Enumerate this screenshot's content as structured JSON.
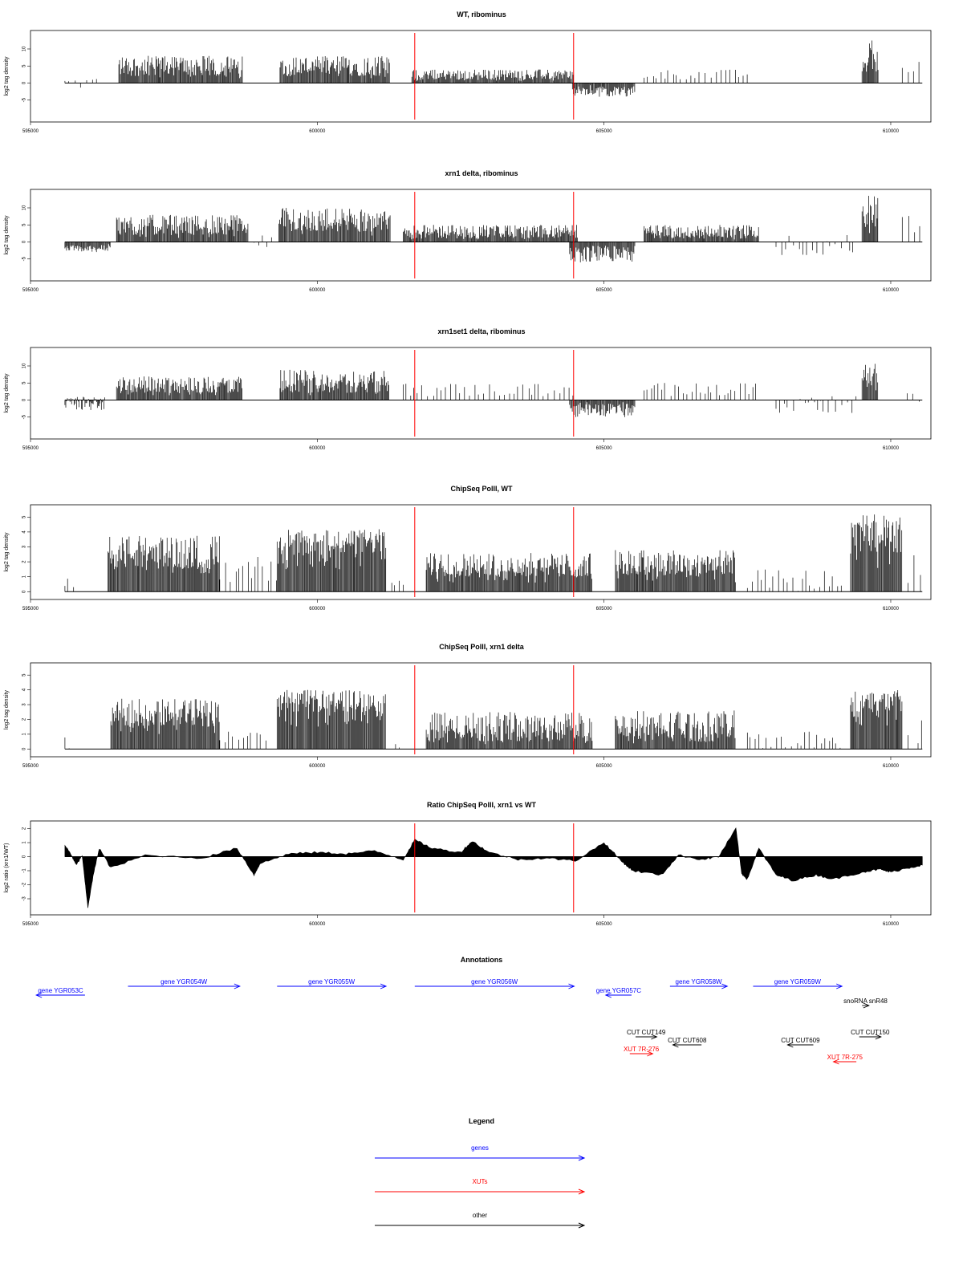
{
  "colors": {
    "marker": "#ff0000",
    "genes": "#0000ff",
    "xuts": "#ff0000",
    "other": "#000000"
  },
  "chart_data": [
    {
      "type": "bar",
      "title": "WT, ribominus",
      "ylabel": "log2 tag density",
      "xlim": [
        595000,
        610700
      ],
      "ylim": [
        -10,
        14
      ],
      "xticks": [
        595000,
        600000,
        605000,
        610000
      ],
      "yticks": [
        -5,
        0,
        5,
        10
      ],
      "markers": [
        601700,
        604470
      ],
      "segments": [
        {
          "x": [
            595600,
            596200
          ],
          "y": [
            -2,
            2
          ],
          "mode": "sparse"
        },
        {
          "x": [
            596540,
            597700
          ],
          "y": [
            2,
            8
          ],
          "mode": "dense"
        },
        {
          "x": [
            597700,
            598700
          ],
          "y": [
            2,
            8
          ],
          "mode": "dense"
        },
        {
          "x": [
            599350,
            601260
          ],
          "y": [
            2,
            8
          ],
          "mode": "dense"
        },
        {
          "x": [
            601650,
            604470
          ],
          "y": [
            1,
            4
          ],
          "mode": "dense"
        },
        {
          "x": [
            604450,
            605550
          ],
          "y": [
            -4,
            -1
          ],
          "mode": "dense"
        },
        {
          "x": [
            605700,
            607500
          ],
          "y": [
            1,
            4
          ],
          "mode": "sparse"
        },
        {
          "x": [
            609500,
            609780
          ],
          "y": [
            3,
            13
          ],
          "mode": "dense"
        },
        {
          "x": [
            610200,
            610550
          ],
          "y": [
            2,
            7
          ],
          "mode": "sparse"
        }
      ]
    },
    {
      "type": "bar",
      "title": "xrn1 delta, ribominus",
      "ylabel": "log2 tag density",
      "xlim": [
        595000,
        610700
      ],
      "ylim": [
        -10,
        14
      ],
      "xticks": [
        595000,
        600000,
        605000,
        610000
      ],
      "yticks": [
        -5,
        0,
        5,
        10
      ],
      "markers": [
        601700,
        604470
      ],
      "segments": [
        {
          "x": [
            595600,
            596400
          ],
          "y": [
            -3,
            -1
          ],
          "mode": "dense"
        },
        {
          "x": [
            596500,
            598800
          ],
          "y": [
            2,
            8
          ],
          "mode": "dense"
        },
        {
          "x": [
            598900,
            599300
          ],
          "y": [
            -2,
            2
          ],
          "mode": "sparse"
        },
        {
          "x": [
            599330,
            601280
          ],
          "y": [
            3,
            10
          ],
          "mode": "dense"
        },
        {
          "x": [
            601500,
            604550
          ],
          "y": [
            1,
            5
          ],
          "mode": "dense"
        },
        {
          "x": [
            604400,
            605550
          ],
          "y": [
            -6,
            -1
          ],
          "mode": "dense"
        },
        {
          "x": [
            605700,
            607700
          ],
          "y": [
            1,
            5
          ],
          "mode": "dense"
        },
        {
          "x": [
            608000,
            609400
          ],
          "y": [
            -4,
            2
          ],
          "mode": "sparse"
        },
        {
          "x": [
            609500,
            609780
          ],
          "y": [
            3,
            14
          ],
          "mode": "dense"
        },
        {
          "x": [
            610200,
            610550
          ],
          "y": [
            2,
            8
          ],
          "mode": "sparse"
        }
      ]
    },
    {
      "type": "bar",
      "title": "xrn1set1 delta, ribominus",
      "ylabel": "log2 tag density",
      "xlim": [
        595000,
        610700
      ],
      "ylim": [
        -10,
        14
      ],
      "xticks": [
        595000,
        600000,
        605000,
        610000
      ],
      "yticks": [
        -5,
        0,
        5,
        10
      ],
      "markers": [
        601700,
        604470
      ],
      "segments": [
        {
          "x": [
            595600,
            596300
          ],
          "y": [
            -3,
            1
          ],
          "mode": "dense"
        },
        {
          "x": [
            596500,
            598700
          ],
          "y": [
            2,
            7
          ],
          "mode": "dense"
        },
        {
          "x": [
            599350,
            601250
          ],
          "y": [
            2,
            9
          ],
          "mode": "dense"
        },
        {
          "x": [
            601500,
            604500
          ],
          "y": [
            1,
            5
          ],
          "mode": "sparse"
        },
        {
          "x": [
            604400,
            605550
          ],
          "y": [
            -5,
            -1
          ],
          "mode": "dense"
        },
        {
          "x": [
            605700,
            607700
          ],
          "y": [
            1,
            5
          ],
          "mode": "sparse"
        },
        {
          "x": [
            608000,
            609400
          ],
          "y": [
            -4,
            2
          ],
          "mode": "sparse"
        },
        {
          "x": [
            609500,
            609780
          ],
          "y": [
            3,
            11
          ],
          "mode": "dense"
        },
        {
          "x": [
            610200,
            610550
          ],
          "y": [
            -1,
            4
          ],
          "mode": "sparse"
        }
      ]
    },
    {
      "type": "bar",
      "title": "ChipSeq PolII, WT",
      "ylabel": "log2 tag density",
      "xlim": [
        595000,
        610700
      ],
      "ylim": [
        -0.2,
        5.5
      ],
      "xticks": [
        595000,
        600000,
        605000,
        610000
      ],
      "yticks": [
        0,
        1,
        2,
        3,
        4,
        5
      ],
      "markers": [
        601700,
        604470
      ],
      "segments": [
        {
          "x": [
            595600,
            595800
          ],
          "y": [
            0,
            1
          ],
          "mode": "sparse"
        },
        {
          "x": [
            596350,
            598300
          ],
          "y": [
            1.5,
            3.8
          ],
          "mode": "dense"
        },
        {
          "x": [
            598300,
            599300
          ],
          "y": [
            0.5,
            2.5
          ],
          "mode": "sparse"
        },
        {
          "x": [
            599300,
            601200
          ],
          "y": [
            2.5,
            4.2
          ],
          "mode": "dense"
        },
        {
          "x": [
            601300,
            601600
          ],
          "y": [
            0,
            1
          ],
          "mode": "sparse"
        },
        {
          "x": [
            601900,
            604800
          ],
          "y": [
            1,
            2.6
          ],
          "mode": "dense"
        },
        {
          "x": [
            605200,
            607300
          ],
          "y": [
            1,
            2.8
          ],
          "mode": "dense"
        },
        {
          "x": [
            607500,
            609200
          ],
          "y": [
            0,
            1.5
          ],
          "mode": "sparse"
        },
        {
          "x": [
            609300,
            610200
          ],
          "y": [
            2.5,
            5.2
          ],
          "mode": "dense"
        },
        {
          "x": [
            610300,
            610550
          ],
          "y": [
            0,
            3
          ],
          "mode": "sparse"
        }
      ]
    },
    {
      "type": "bar",
      "title": "ChipSeq PolII, xrn1 delta",
      "ylabel": "log2 tag density",
      "xlim": [
        595000,
        610700
      ],
      "ylim": [
        -0.2,
        5.5
      ],
      "xticks": [
        595000,
        600000,
        605000,
        610000
      ],
      "yticks": [
        0,
        1,
        2,
        3,
        4,
        5
      ],
      "markers": [
        601700,
        604470
      ],
      "segments": [
        {
          "x": [
            595600,
            595700
          ],
          "y": [
            0,
            1
          ],
          "mode": "sparse"
        },
        {
          "x": [
            596400,
            598300
          ],
          "y": [
            1.5,
            3.4
          ],
          "mode": "dense"
        },
        {
          "x": [
            598300,
            599200
          ],
          "y": [
            0.3,
            1.5
          ],
          "mode": "sparse"
        },
        {
          "x": [
            599300,
            601200
          ],
          "y": [
            2.5,
            4
          ],
          "mode": "dense"
        },
        {
          "x": [
            601300,
            601600
          ],
          "y": [
            0,
            0.8
          ],
          "mode": "sparse"
        },
        {
          "x": [
            601900,
            604800
          ],
          "y": [
            0.5,
            2.5
          ],
          "mode": "dense"
        },
        {
          "x": [
            605200,
            607300
          ],
          "y": [
            0.5,
            2.6
          ],
          "mode": "dense"
        },
        {
          "x": [
            607500,
            609200
          ],
          "y": [
            0,
            1.2
          ],
          "mode": "sparse"
        },
        {
          "x": [
            609300,
            610200
          ],
          "y": [
            2.5,
            4
          ],
          "mode": "dense"
        },
        {
          "x": [
            610300,
            610550
          ],
          "y": [
            0,
            2
          ],
          "mode": "sparse"
        }
      ]
    },
    {
      "type": "area",
      "title": "Ratio ChipSeq PolII, xrn1 vs WT",
      "ylabel": "log2 ratio (xrn1/WT)",
      "xlim": [
        595000,
        610700
      ],
      "ylim": [
        -3.8,
        2.2
      ],
      "xticks": [
        595000,
        600000,
        605000,
        610000
      ],
      "yticks": [
        -3,
        -2,
        -1,
        0,
        1,
        2
      ],
      "markers": [
        601700,
        604470
      ],
      "x": [
        595600,
        595700,
        595800,
        595900,
        596000,
        596100,
        596200,
        596400,
        597000,
        598000,
        598600,
        598900,
        599000,
        599500,
        600000,
        600500,
        601000,
        601500,
        601700,
        602000,
        602500,
        602700,
        603000,
        603500,
        604000,
        604500,
        605000,
        605300,
        605500,
        606000,
        606300,
        606700,
        607000,
        607300,
        607400,
        607500,
        607700,
        608000,
        608300,
        608700,
        609000,
        609500,
        609800,
        610000,
        610300,
        610550
      ],
      "y": [
        0.8,
        0.2,
        -0.6,
        0.1,
        -3.6,
        -1.2,
        0.6,
        -0.8,
        0.1,
        -0.1,
        0.6,
        -1.3,
        -0.5,
        0.2,
        0.3,
        0.2,
        0.4,
        -0.2,
        1.2,
        0.6,
        0.3,
        1.1,
        0.3,
        -0.2,
        -0.1,
        -0.3,
        1,
        -0.3,
        -1,
        -1.3,
        0.1,
        -0.2,
        0,
        2,
        -1.2,
        -1.6,
        0.6,
        -1.3,
        -1.7,
        -1.3,
        -1.6,
        -1.1,
        -0.9,
        -1.1,
        -0.8,
        -0.6
      ]
    }
  ],
  "annotations": {
    "title": "Annotations",
    "items": [
      {
        "label": "gene YGR053C",
        "start": 595100,
        "end": 595950,
        "dir": "left",
        "color": "#0000ff",
        "row": 0
      },
      {
        "label": "gene YGR054W",
        "start": 596700,
        "end": 598650,
        "dir": "right",
        "color": "#0000ff",
        "row": -1
      },
      {
        "label": "gene YGR055W",
        "start": 599300,
        "end": 601200,
        "dir": "right",
        "color": "#0000ff",
        "row": -1
      },
      {
        "label": "gene YGR056W",
        "start": 601700,
        "end": 604480,
        "dir": "right",
        "color": "#0000ff",
        "row": -1
      },
      {
        "label": "gene YGR057C",
        "start": 605030,
        "end": 605480,
        "dir": "left",
        "color": "#0000ff",
        "row": 0
      },
      {
        "label": "gene YGR058W",
        "start": 606150,
        "end": 607150,
        "dir": "right",
        "color": "#0000ff",
        "row": -1
      },
      {
        "label": "gene YGR059W",
        "start": 607600,
        "end": 609150,
        "dir": "right",
        "color": "#0000ff",
        "row": -1
      },
      {
        "label": "snoRNA snR48",
        "start": 609500,
        "end": 609620,
        "dir": "right",
        "color": "#000000",
        "row": 1
      },
      {
        "label": "CUT CUT149",
        "start": 605550,
        "end": 605920,
        "dir": "right",
        "color": "#000000",
        "row": 3
      },
      {
        "label": "CUT CUT608",
        "start": 606200,
        "end": 606700,
        "dir": "left",
        "color": "#000000",
        "row": 4
      },
      {
        "label": "CUT CUT609",
        "start": 608200,
        "end": 608650,
        "dir": "left",
        "color": "#000000",
        "row": 4
      },
      {
        "label": "CUT CUT150",
        "start": 609450,
        "end": 609830,
        "dir": "right",
        "color": "#000000",
        "row": 3
      },
      {
        "label": "XUT 7R-276",
        "start": 605450,
        "end": 605850,
        "dir": "right",
        "color": "#ff0000",
        "row": 5
      },
      {
        "label": "XUT 7R-275",
        "start": 609000,
        "end": 609400,
        "dir": "left",
        "color": "#ff0000",
        "row": 6
      }
    ]
  },
  "legend": {
    "title": "Legend",
    "items": [
      {
        "label": "genes",
        "color": "#0000ff"
      },
      {
        "label": "XUTs",
        "color": "#ff0000"
      },
      {
        "label": "other",
        "color": "#000000"
      }
    ]
  }
}
